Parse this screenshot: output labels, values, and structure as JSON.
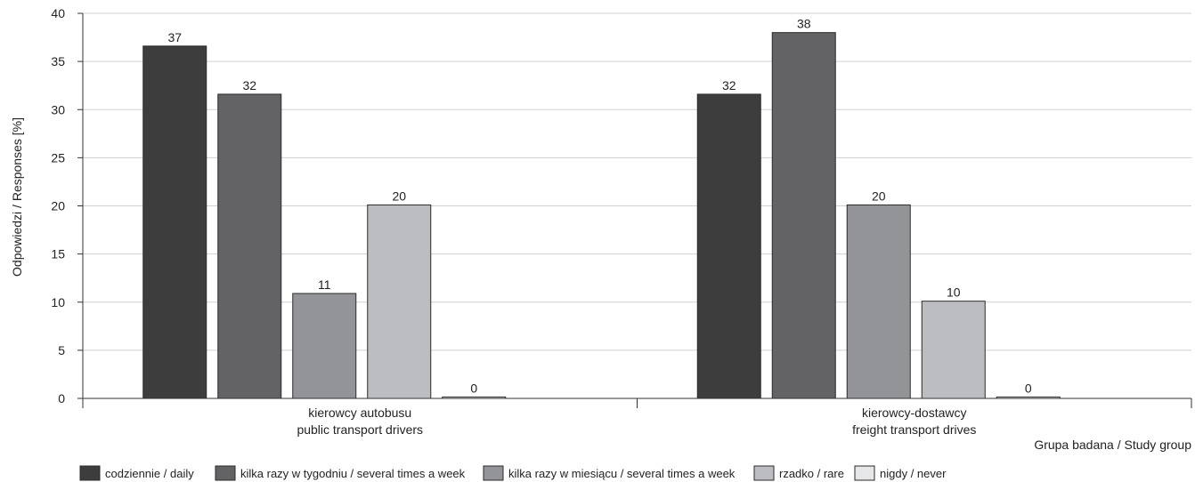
{
  "chart_data": {
    "type": "bar",
    "title": "",
    "xlabel": "Grupa badana / Study group",
    "ylabel": "Odpowiedzi / Responses [%]",
    "ylim": [
      0,
      40
    ],
    "yticks": [
      0,
      5,
      10,
      15,
      20,
      25,
      30,
      35,
      40
    ],
    "grid": true,
    "legend_position": "bottom",
    "categories": [
      [
        "kierowcy autobusu",
        "public transport drivers"
      ],
      [
        "kierowcy-dostawcy",
        "freight transport drives"
      ]
    ],
    "series": [
      {
        "name": "codziennie / daily",
        "color": "#3d3d3d",
        "values": [
          37,
          32
        ],
        "plot_values": [
          36.6,
          31.6
        ]
      },
      {
        "name": "kilka razy w tygodniu / several times a week",
        "color": "#636365",
        "values": [
          32,
          38
        ],
        "plot_values": [
          31.6,
          38.0
        ]
      },
      {
        "name": "kilka razy w miesiącu / several times a week",
        "color": "#939497",
        "values": [
          11,
          20
        ],
        "plot_values": [
          10.9,
          20.1
        ]
      },
      {
        "name": "rzadko / rare",
        "color": "#bcbdc1",
        "values": [
          20,
          10
        ],
        "plot_values": [
          20.1,
          10.1
        ]
      },
      {
        "name": "nigdy / never",
        "color": "#e6e7e9",
        "values": [
          0,
          0
        ],
        "plot_values": [
          0.15,
          0.15
        ]
      }
    ]
  }
}
